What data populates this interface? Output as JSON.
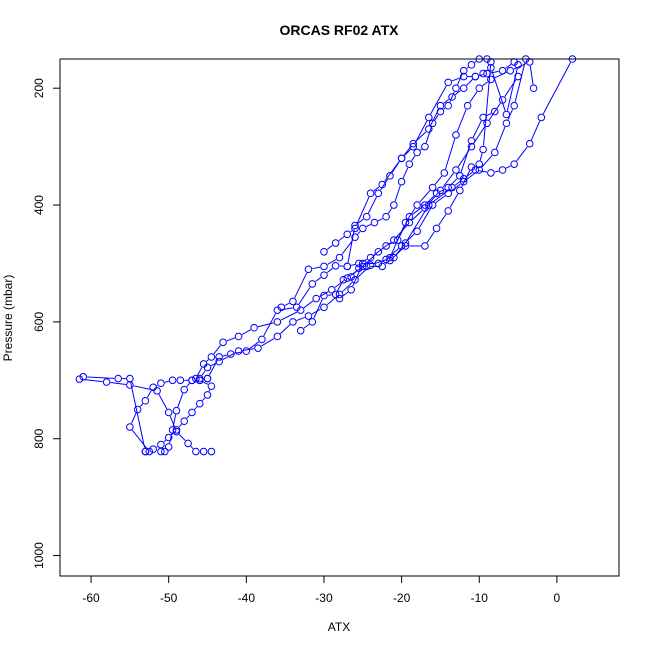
{
  "chart_data": {
    "type": "line",
    "title": "ORCAS RF02 ATX",
    "xlabel": "ATX",
    "ylabel": "Pressure (mbar)",
    "xlim": [
      -64,
      8
    ],
    "ylim": [
      1035,
      150
    ],
    "y_reversed": true,
    "x_ticks": [
      -60,
      -50,
      -40,
      -30,
      -20,
      -10,
      0
    ],
    "y_ticks": [
      200,
      400,
      600,
      800,
      1000
    ],
    "grid": false,
    "marker": "open-circle",
    "series_color": "#0000ff",
    "series": [
      {
        "x": [
          -44.5,
          -45.5,
          -46.5,
          -47.5,
          -49,
          -50,
          -51.5,
          -55,
          -58,
          -61.5,
          -61,
          -56.5,
          -55,
          -53
        ],
        "y": [
          822,
          822,
          822,
          808,
          788,
          755,
          718,
          708,
          703,
          698,
          694,
          697,
          697,
          822
        ]
      },
      {
        "x": [
          -53,
          -52,
          -51,
          -50,
          -49,
          -48,
          -47,
          -46,
          -45,
          -44.5,
          -46,
          -47,
          -48.5,
          -49.5,
          -51,
          -52,
          -53,
          -54,
          -55,
          -52.5
        ],
        "y": [
          822,
          818,
          810,
          798,
          785,
          770,
          755,
          740,
          725,
          710,
          700,
          700,
          700,
          700,
          705,
          712,
          735,
          750,
          780,
          822
        ]
      },
      {
        "x": [
          -51,
          -50.5,
          -50,
          -49.5,
          -49,
          -48,
          -47,
          -46,
          -45
        ],
        "y": [
          822,
          822,
          814,
          785,
          752,
          716,
          700,
          700,
          697
        ]
      },
      {
        "x": [
          -46.5,
          -45.5,
          -44.5,
          -43,
          -41,
          -39,
          -36,
          -33,
          -31,
          -29,
          -27,
          -25,
          -23,
          -21,
          -19,
          -17,
          -15,
          -13,
          -11,
          -9,
          -7,
          -5
        ],
        "y": [
          697,
          672,
          660,
          635,
          625,
          610,
          600,
          580,
          560,
          545,
          525,
          505,
          480,
          460,
          430,
          405,
          375,
          340,
          300,
          260,
          220,
          180
        ]
      },
      {
        "x": [
          -46,
          -45,
          -43.5,
          -41,
          -38.5,
          -36,
          -34,
          -32,
          -30,
          -28,
          -26,
          -24,
          -22,
          -20,
          -18,
          -16,
          -14,
          -12,
          -10,
          -8,
          -6.5,
          -5.5,
          -4
        ],
        "y": [
          697,
          678,
          668,
          650,
          645,
          625,
          600,
          590,
          575,
          553,
          528,
          503,
          493,
          470,
          445,
          400,
          380,
          360,
          340,
          310,
          260,
          230,
          150
        ]
      },
      {
        "x": [
          -45,
          -43.5,
          -42,
          -40,
          -38,
          -36,
          -33.5,
          -31.5,
          -30,
          -28.5,
          -27,
          -25.5,
          -24,
          -22,
          -20.5,
          -19,
          -17,
          -15.5,
          -14,
          -12.5,
          -11,
          -9.5,
          -8
        ],
        "y": [
          697,
          660,
          655,
          650,
          630,
          580,
          575,
          535,
          520,
          504,
          505,
          500,
          490,
          470,
          460,
          420,
          400,
          380,
          370,
          350,
          290,
          250,
          240
        ]
      },
      {
        "x": [
          -35.5,
          -34,
          -32,
          -30,
          -28,
          -26,
          -25,
          -23.5,
          -22,
          -21,
          -20,
          -19,
          -18,
          -17,
          -16,
          -15,
          -14,
          -13,
          -12,
          -11,
          -10,
          -9
        ],
        "y": [
          575,
          565,
          510,
          505,
          490,
          455,
          440,
          430,
          420,
          400,
          360,
          330,
          310,
          300,
          260,
          240,
          230,
          200,
          170,
          160,
          150,
          150
        ]
      },
      {
        "x": [
          -33,
          -31.5,
          -30,
          -28.5,
          -27.5,
          -26.5,
          -25.5,
          -24.5,
          -22.5,
          -21.5,
          -19.5,
          -17,
          -15.5,
          -14,
          -12.5,
          -11,
          -10,
          -9.5,
          -8.5
        ],
        "y": [
          615,
          600,
          555,
          553,
          528,
          523,
          508,
          505,
          505,
          495,
          470,
          470,
          440,
          410,
          375,
          335,
          330,
          305,
          155
        ]
      },
      {
        "x": [
          -30,
          -28.5,
          -27,
          -26,
          -24,
          -22.5,
          -20,
          -18.5,
          -16.5,
          -14,
          -12,
          -10.5,
          -9,
          -7,
          -5.5
        ],
        "y": [
          480,
          465,
          450,
          440,
          380,
          365,
          320,
          300,
          250,
          190,
          180,
          180,
          175,
          170,
          155
        ]
      },
      {
        "x": [
          -27,
          -26,
          -24.5,
          -23,
          -21.5,
          -20,
          -18.5,
          -16.5,
          -15,
          -13.5,
          -12,
          -10.5,
          -9.5,
          -8.5,
          -6.5,
          -5
        ],
        "y": [
          505,
          435,
          420,
          380,
          350,
          320,
          295,
          270,
          230,
          215,
          200,
          180,
          175,
          165,
          245,
          160
        ]
      },
      {
        "x": [
          -28,
          -26.5,
          -25,
          -23,
          -21.5,
          -19.5,
          -18,
          -16,
          -14.5,
          -13,
          -11.5,
          -10,
          -8.5,
          -6,
          -3.5,
          -3
        ],
        "y": [
          560,
          545,
          500,
          500,
          490,
          430,
          400,
          370,
          345,
          280,
          230,
          200,
          185,
          170,
          155,
          200
        ]
      },
      {
        "x": [
          -21,
          -19.5,
          -16.5,
          -13.5,
          -12,
          -10.5,
          -8.5,
          -7,
          -5.5,
          -3.5,
          -2,
          2
        ],
        "y": [
          490,
          465,
          400,
          370,
          355,
          340,
          345,
          340,
          330,
          295,
          250,
          150
        ]
      }
    ]
  }
}
